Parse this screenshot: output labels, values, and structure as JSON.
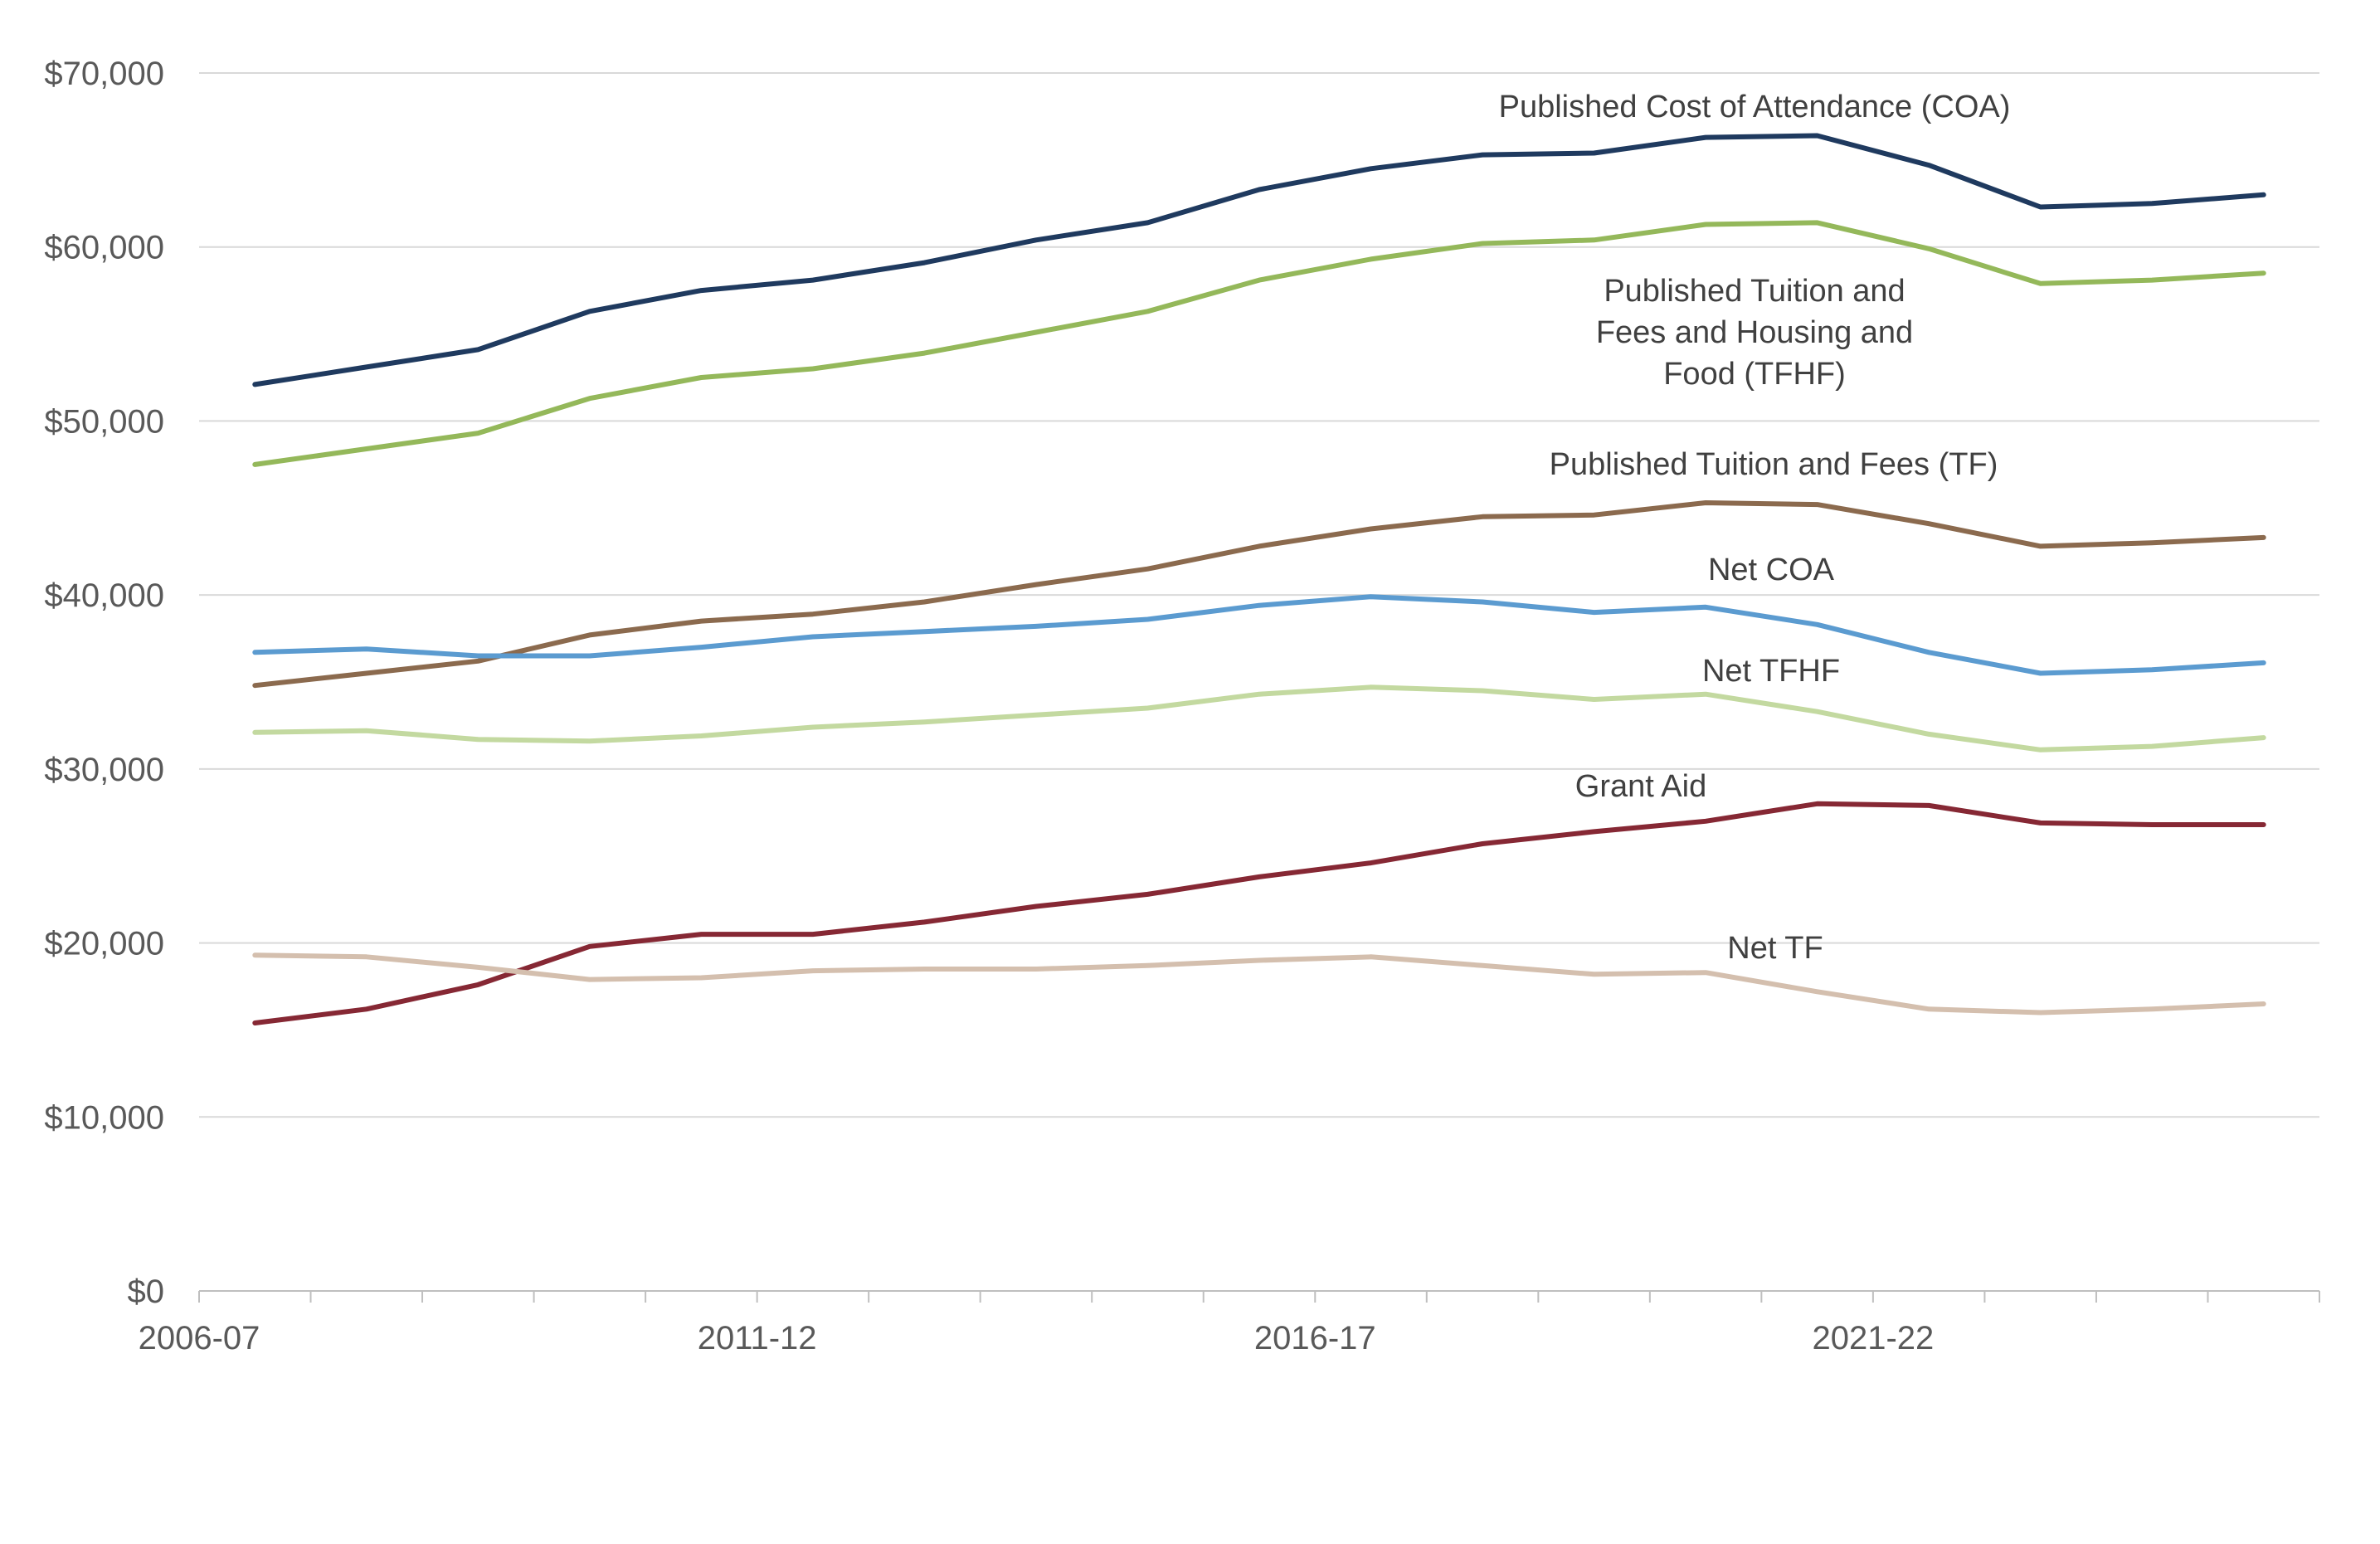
{
  "chart_data": {
    "type": "line",
    "title": "",
    "xlabel": "",
    "ylabel": "",
    "ylim": [
      0,
      70000
    ],
    "yticks": [
      0,
      10000,
      20000,
      30000,
      40000,
      50000,
      60000,
      70000
    ],
    "ytick_labels": [
      "$0",
      "$10,000",
      "$20,000",
      "$30,000",
      "$40,000",
      "$50,000",
      "$60,000",
      "$70,000"
    ],
    "x": [
      "2006-07",
      "2007-08",
      "2008-09",
      "2009-10",
      "2010-11",
      "2011-12",
      "2012-13",
      "2013-14",
      "2014-15",
      "2015-16",
      "2016-17",
      "2017-18",
      "2018-19",
      "2019-20",
      "2020-21",
      "2021-22",
      "2022-23",
      "2023-24",
      "2024-25"
    ],
    "xtick_labels": [
      "2006-07",
      "2011-12",
      "2016-17",
      "2021-22"
    ],
    "grid": true,
    "legend": "inline labels",
    "series": [
      {
        "name": "Published Cost of Attendance (COA)",
        "label_lines": [
          "Published Cost of Attendance (COA)"
        ],
        "color": "#1f3a5f",
        "values": [
          52100,
          53100,
          54100,
          56300,
          57500,
          58100,
          59100,
          60400,
          61400,
          63300,
          64500,
          65300,
          65400,
          66300,
          66400,
          64700,
          62300,
          62500,
          63000
        ]
      },
      {
        "name": "Published Tuition and Fees and Housing and Food (TFHF)",
        "label_lines": [
          "Published Tuition and",
          "Fees and Housing and",
          "Food (TFHF)"
        ],
        "color": "#94b85a",
        "values": [
          47500,
          48400,
          49300,
          51300,
          52500,
          53000,
          53900,
          55100,
          56300,
          58100,
          59300,
          60200,
          60400,
          61300,
          61400,
          59900,
          57900,
          58100,
          58500
        ]
      },
      {
        "name": "Published Tuition and Fees (TF)",
        "label_lines": [
          "Published Tuition and Fees (TF)"
        ],
        "color": "#8b6a4e",
        "values": [
          34800,
          35500,
          36200,
          37700,
          38500,
          38900,
          39600,
          40600,
          41500,
          42800,
          43800,
          44500,
          44600,
          45300,
          45200,
          44100,
          42800,
          43000,
          43300
        ]
      },
      {
        "name": "Net COA",
        "label_lines": [
          "Net COA"
        ],
        "color": "#5b9bd0",
        "values": [
          36700,
          36900,
          36500,
          36500,
          37000,
          37600,
          37900,
          38200,
          38600,
          39400,
          39900,
          39600,
          39000,
          39300,
          38300,
          36700,
          35500,
          35700,
          36100
        ]
      },
      {
        "name": "Net TFHF",
        "label_lines": [
          "Net TFHF"
        ],
        "color": "#c3d9a0",
        "values": [
          32100,
          32200,
          31700,
          31600,
          31900,
          32400,
          32700,
          33100,
          33500,
          34300,
          34700,
          34500,
          34000,
          34300,
          33300,
          32000,
          31100,
          31300,
          31800
        ]
      },
      {
        "name": "Grant Aid",
        "label_lines": [
          "Grant Aid"
        ],
        "color": "#862834",
        "values": [
          15400,
          16200,
          17600,
          19800,
          20500,
          20500,
          21200,
          22100,
          22800,
          23800,
          24600,
          25700,
          26400,
          27000,
          28000,
          27900,
          26900,
          26800,
          26800
        ]
      },
      {
        "name": "Net TF",
        "label_lines": [
          "Net TF"
        ],
        "color": "#d4bfae",
        "values": [
          19300,
          19200,
          18600,
          17900,
          18000,
          18400,
          18500,
          18500,
          18700,
          19000,
          19200,
          18700,
          18200,
          18300,
          17200,
          16200,
          16000,
          16200,
          16500
        ]
      }
    ]
  }
}
